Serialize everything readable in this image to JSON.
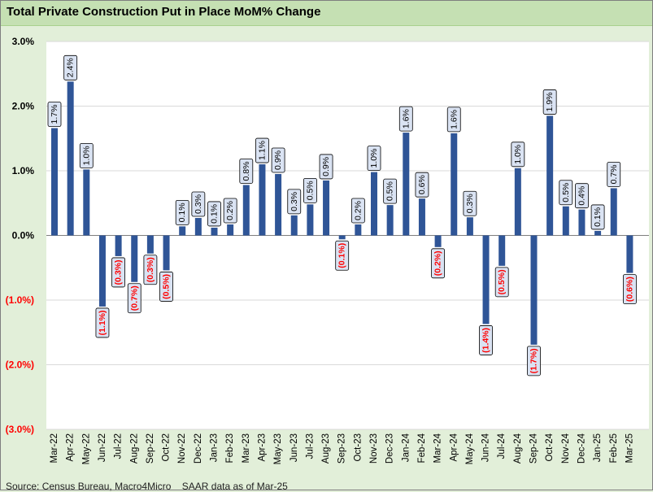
{
  "title": "Total Private Construction Put in Place MoM% Change",
  "source": "Source: Census Bureau, Macro4Micro    SAAR data as of Mar-25",
  "colors": {
    "bar": "#2f5597",
    "negative_label": "#ff0000",
    "background": "#e2efd9",
    "title_bg": "#c5e0b3",
    "label_box": "#dae3f3"
  },
  "chart_data": {
    "type": "bar",
    "title": "Total Private Construction Put in Place MoM% Change",
    "xlabel": "",
    "ylabel": "",
    "ylim": [
      -3.0,
      3.0
    ],
    "y_ticks": [
      3.0,
      2.0,
      1.0,
      0.0,
      -1.0,
      -2.0,
      -3.0
    ],
    "y_tick_labels": [
      "3.0%",
      "2.0%",
      "1.0%",
      "0.0%",
      "(1.0%)",
      "(2.0%)",
      "(3.0%)"
    ],
    "grid": true,
    "categories": [
      "Mar-22",
      "Apr-22",
      "May-22",
      "Jun-22",
      "Jul-22",
      "Aug-22",
      "Sep-22",
      "Oct-22",
      "Nov-22",
      "Dec-22",
      "Jan-23",
      "Feb-23",
      "Mar-23",
      "Apr-23",
      "May-23",
      "Jun-23",
      "Jul-23",
      "Aug-23",
      "Sep-23",
      "Oct-23",
      "Nov-23",
      "Dec-23",
      "Jan-24",
      "Feb-24",
      "Mar-24",
      "Apr-24",
      "May-24",
      "Jun-24",
      "Jul-24",
      "Aug-24",
      "Sep-24",
      "Oct-24",
      "Nov-24",
      "Dec-24",
      "Jan-25",
      "Feb-25",
      "Mar-25"
    ],
    "values": [
      1.66,
      2.38,
      1.02,
      -1.1,
      -0.32,
      -0.72,
      -0.28,
      -0.54,
      0.14,
      0.27,
      0.12,
      0.17,
      0.78,
      1.1,
      0.95,
      0.31,
      0.48,
      0.85,
      -0.06,
      0.17,
      0.98,
      0.47,
      1.59,
      0.57,
      -0.18,
      1.58,
      0.28,
      -1.37,
      -0.47,
      1.04,
      -1.69,
      1.85,
      0.45,
      0.4,
      0.07,
      0.73,
      -0.58
    ],
    "data_labels": [
      "1.7%",
      "2.4%",
      "1.0%",
      "(1.1%)",
      "(0.3%)",
      "(0.7%)",
      "(0.3%)",
      "(0.5%)",
      "0.1%",
      "0.3%",
      "0.1%",
      "0.2%",
      "0.8%",
      "1.1%",
      "0.9%",
      "0.3%",
      "0.5%",
      "0.9%",
      "(0.1%)",
      "0.2%",
      "1.0%",
      "0.5%",
      "1.6%",
      "0.6%",
      "(0.2%)",
      "1.6%",
      "0.3%",
      "(1.4%)",
      "(0.5%)",
      "1.0%",
      "(1.7%)",
      "1.9%",
      "0.5%",
      "0.4%",
      "0.1%",
      "0.7%",
      "(0.6%)"
    ]
  }
}
